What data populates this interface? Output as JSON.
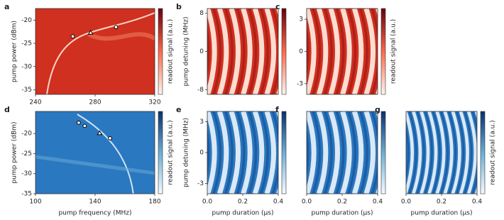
{
  "chart_data": [
    {
      "type": "heatmap",
      "label": "a",
      "cmap": "Reds",
      "ylabel": "pump power (dBm)",
      "colorbar_label": "readout signal (a.u.)",
      "xlim": [
        240,
        320
      ],
      "xticks": [
        240,
        280,
        320
      ],
      "ylim": [
        -36,
        -17.5
      ],
      "yticks": [
        -20,
        -25,
        -30,
        -35
      ],
      "points": [
        {
          "x": 265,
          "y": -23.5,
          "marker": "circle"
        },
        {
          "x": 277,
          "y": -22.7,
          "marker": "triangle"
        },
        {
          "x": 294,
          "y": -21.5,
          "marker": "circle"
        }
      ]
    },
    {
      "type": "heatmap",
      "label": "b",
      "cmap": "Reds",
      "ylabel": "pump detuning (MHz)",
      "xlim": [
        0,
        0.4
      ],
      "ylim": [
        -9,
        9
      ],
      "yticks": [
        -8,
        0,
        8
      ]
    },
    {
      "type": "heatmap",
      "label": "c",
      "cmap": "Reds",
      "colorbar_label": "readout signal (a.u.)",
      "xlim": [
        0,
        0.4
      ],
      "ylim": [
        -4,
        4
      ],
      "yticks": [
        -3,
        0,
        3
      ]
    },
    {
      "type": "heatmap",
      "label": "d",
      "cmap": "Blues",
      "xlabel": "pump frequency (MHz)",
      "ylabel": "pump power (dBm)",
      "colorbar_label": "readout signal (a.u.)",
      "xlim": [
        100,
        180
      ],
      "xticks": [
        100,
        140,
        180
      ],
      "ylim": [
        -35,
        -14.5
      ],
      "yticks": [
        -20,
        -25,
        -30,
        -35
      ],
      "points": [
        {
          "x": 129,
          "y": -17.3,
          "marker": "circle"
        },
        {
          "x": 133,
          "y": -18.1,
          "marker": "circle"
        },
        {
          "x": 143,
          "y": -19.9,
          "marker": "triangle"
        },
        {
          "x": 150,
          "y": -21.2,
          "marker": "circle"
        }
      ]
    },
    {
      "type": "heatmap",
      "label": "e",
      "cmap": "Blues",
      "xlabel": "pump duration (μs)",
      "ylabel": "pump detuning (MHz)",
      "xlim": [
        0,
        0.4
      ],
      "xticks": [
        {
          "value": 0,
          "label": "0.0"
        },
        0.2,
        {
          "value": 0.4,
          "label": "0.4"
        }
      ],
      "ylim": [
        -4,
        4
      ],
      "yticks": [
        -3,
        0,
        3
      ]
    },
    {
      "type": "heatmap",
      "label": "f",
      "cmap": "Blues",
      "xlabel": "pump duration (μs)",
      "xlim": [
        0,
        0.4
      ],
      "xticks": [
        {
          "value": 0,
          "label": "0.0"
        },
        0.2,
        {
          "value": 0.4,
          "label": "0.4"
        }
      ],
      "ylim": [
        -4,
        4
      ]
    },
    {
      "type": "heatmap",
      "label": "g",
      "cmap": "Blues",
      "xlabel": "pump duration (μs)",
      "colorbar_label": "readout signal (a.u.)",
      "xlim": [
        0,
        0.4
      ],
      "xticks": [
        {
          "value": 0,
          "label": "0.0"
        },
        0.2,
        {
          "value": 0.4,
          "label": "0.4"
        }
      ],
      "ylim": [
        -4,
        4
      ]
    }
  ]
}
